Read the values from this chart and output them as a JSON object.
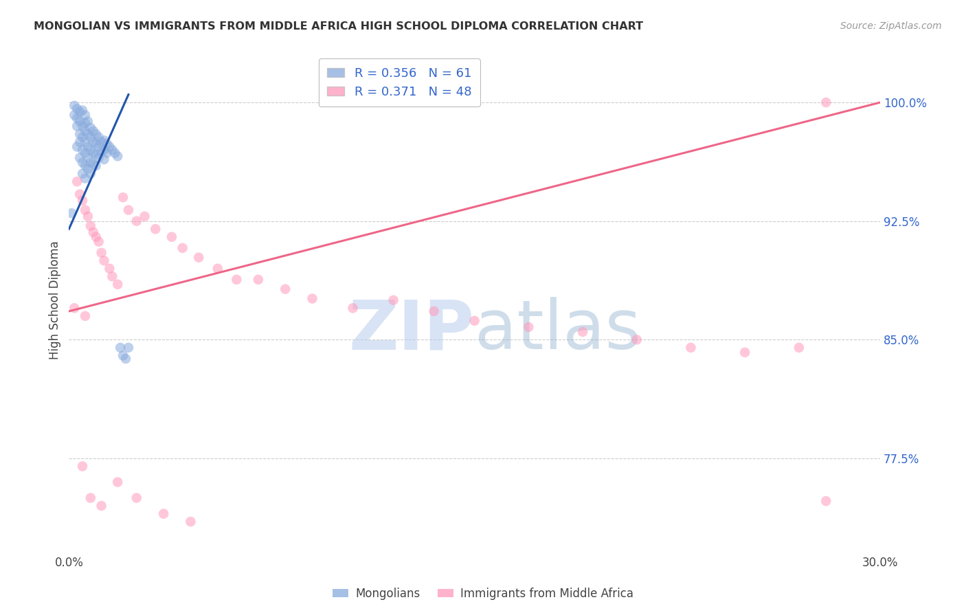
{
  "title": "MONGOLIAN VS IMMIGRANTS FROM MIDDLE AFRICA HIGH SCHOOL DIPLOMA CORRELATION CHART",
  "source": "Source: ZipAtlas.com",
  "ylabel": "High School Diploma",
  "xlim": [
    0.0,
    0.3
  ],
  "ylim": [
    0.715,
    1.035
  ],
  "ytick_values": [
    0.775,
    0.85,
    0.925,
    1.0
  ],
  "ytick_labels": [
    "77.5%",
    "85.0%",
    "92.5%",
    "100.0%"
  ],
  "xtick_values": [
    0.0,
    0.05,
    0.1,
    0.15,
    0.2,
    0.25,
    0.3
  ],
  "xtick_labels": [
    "0.0%",
    "",
    "",
    "",
    "",
    "",
    "30.0%"
  ],
  "legend_blue_r": "0.356",
  "legend_blue_n": "61",
  "legend_pink_r": "0.371",
  "legend_pink_n": "48",
  "blue_color": "#88AADD",
  "pink_color": "#FF99BB",
  "blue_line_color": "#2255AA",
  "pink_line_color": "#EE6688",
  "grid_color": "#CCCCCC",
  "watermark_color": "#C8D8EE",
  "blue_x": [
    0.001,
    0.002,
    0.002,
    0.003,
    0.003,
    0.003,
    0.003,
    0.004,
    0.004,
    0.004,
    0.004,
    0.004,
    0.005,
    0.005,
    0.005,
    0.005,
    0.005,
    0.005,
    0.006,
    0.006,
    0.006,
    0.006,
    0.006,
    0.006,
    0.006,
    0.007,
    0.007,
    0.007,
    0.007,
    0.007,
    0.008,
    0.008,
    0.008,
    0.008,
    0.008,
    0.009,
    0.009,
    0.009,
    0.009,
    0.01,
    0.01,
    0.01,
    0.01,
    0.011,
    0.011,
    0.011,
    0.012,
    0.012,
    0.013,
    0.013,
    0.013,
    0.014,
    0.014,
    0.015,
    0.016,
    0.017,
    0.018,
    0.019,
    0.02,
    0.021,
    0.022
  ],
  "blue_y": [
    0.93,
    0.998,
    0.992,
    0.996,
    0.99,
    0.985,
    0.972,
    0.994,
    0.988,
    0.98,
    0.975,
    0.965,
    0.995,
    0.985,
    0.978,
    0.97,
    0.962,
    0.955,
    0.992,
    0.987,
    0.982,
    0.975,
    0.968,
    0.96,
    0.952,
    0.988,
    0.98,
    0.972,
    0.965,
    0.958,
    0.984,
    0.978,
    0.97,
    0.962,
    0.955,
    0.982,
    0.975,
    0.968,
    0.961,
    0.98,
    0.974,
    0.967,
    0.96,
    0.978,
    0.972,
    0.965,
    0.975,
    0.969,
    0.976,
    0.97,
    0.964,
    0.974,
    0.968,
    0.972,
    0.97,
    0.968,
    0.966,
    0.845,
    0.84,
    0.838,
    0.845
  ],
  "pink_x": [
    0.002,
    0.003,
    0.004,
    0.005,
    0.006,
    0.006,
    0.007,
    0.008,
    0.009,
    0.01,
    0.011,
    0.012,
    0.013,
    0.015,
    0.016,
    0.018,
    0.02,
    0.022,
    0.025,
    0.028,
    0.032,
    0.038,
    0.042,
    0.048,
    0.055,
    0.062,
    0.07,
    0.08,
    0.09,
    0.105,
    0.12,
    0.135,
    0.15,
    0.17,
    0.19,
    0.21,
    0.23,
    0.25,
    0.27,
    0.28,
    0.005,
    0.008,
    0.012,
    0.018,
    0.025,
    0.035,
    0.045,
    0.28
  ],
  "pink_y": [
    0.87,
    0.95,
    0.942,
    0.938,
    0.932,
    0.865,
    0.928,
    0.922,
    0.918,
    0.915,
    0.912,
    0.905,
    0.9,
    0.895,
    0.89,
    0.885,
    0.94,
    0.932,
    0.925,
    0.928,
    0.92,
    0.915,
    0.908,
    0.902,
    0.895,
    0.888,
    0.888,
    0.882,
    0.876,
    0.87,
    0.875,
    0.868,
    0.862,
    0.858,
    0.855,
    0.85,
    0.845,
    0.842,
    0.845,
    1.0,
    0.77,
    0.75,
    0.745,
    0.76,
    0.75,
    0.74,
    0.735,
    0.748
  ],
  "blue_line_x": [
    0.0,
    0.022
  ],
  "blue_line_y": [
    0.92,
    1.005
  ],
  "pink_line_x": [
    0.0,
    0.3
  ],
  "pink_line_y": [
    0.868,
    1.0
  ]
}
